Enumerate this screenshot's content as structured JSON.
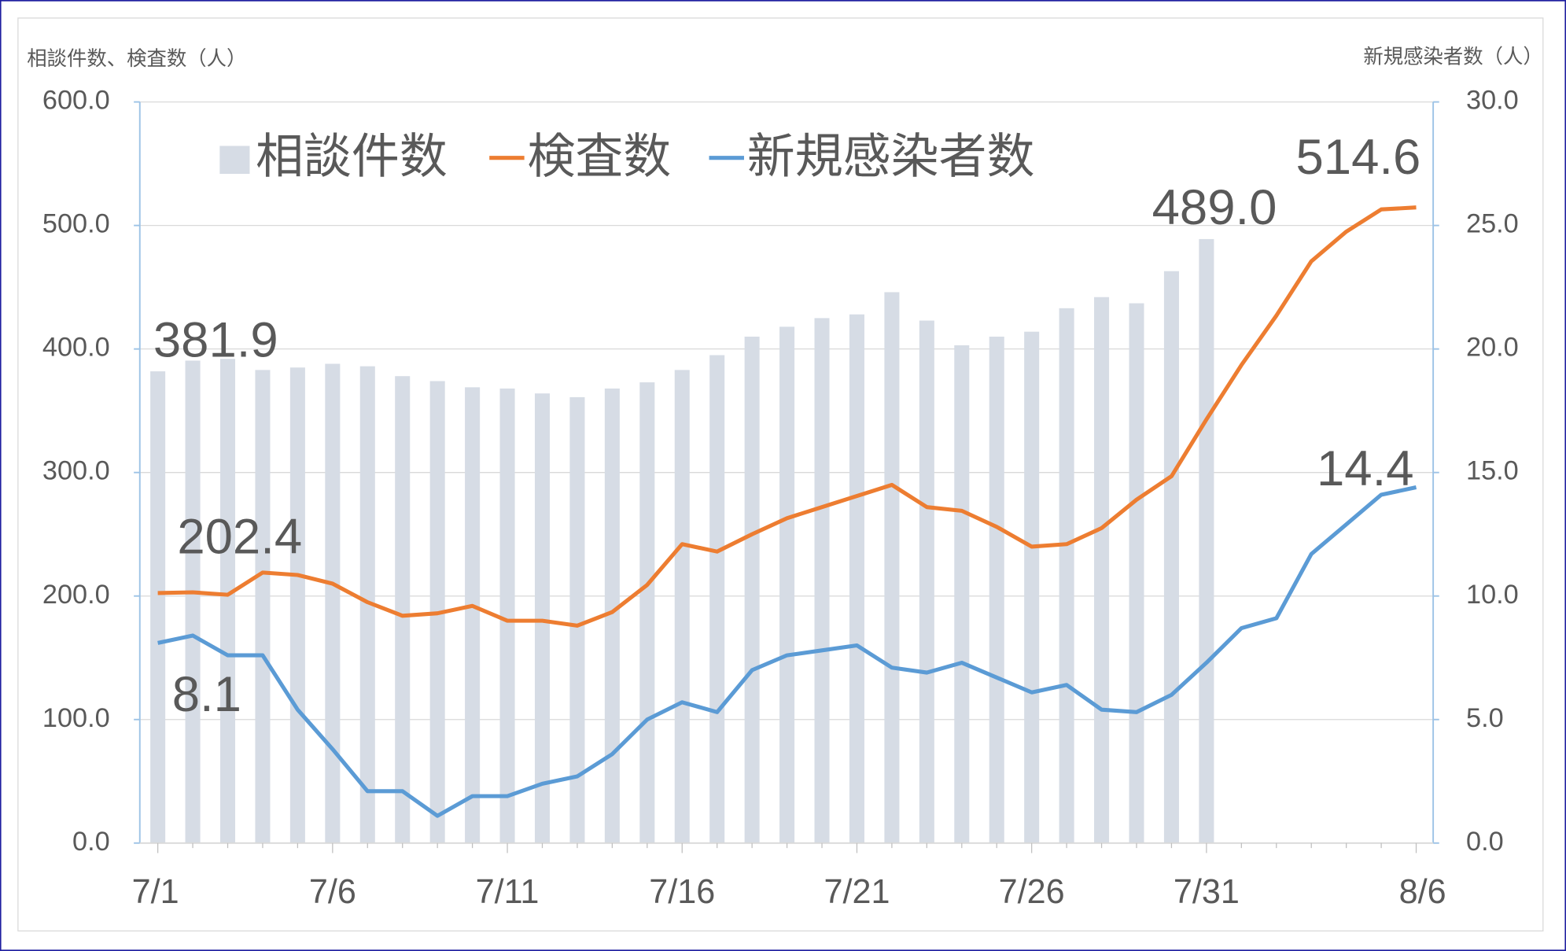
{
  "chart_data": {
    "type": "bar_line",
    "y_label": "相談件数、検査数（人）",
    "y2_label": "新規感染者数（人）",
    "categories": [
      "7/1",
      null,
      null,
      null,
      null,
      "7/6",
      null,
      null,
      null,
      null,
      "7/11",
      null,
      null,
      null,
      null,
      "7/16",
      null,
      null,
      null,
      null,
      "7/21",
      null,
      null,
      null,
      null,
      "7/26",
      null,
      null,
      null,
      null,
      "7/31",
      null,
      null,
      null,
      null,
      null,
      "8/6"
    ],
    "series": [
      {
        "name": "相談件数",
        "type": "bar",
        "color": "#d6dce5",
        "label_color": "#333f50",
        "values": [
          381.9,
          390.6,
          392,
          383,
          385,
          388,
          386,
          378,
          374,
          369,
          368,
          364,
          361,
          368,
          373,
          383,
          395,
          410,
          418,
          425,
          428,
          446,
          423,
          403,
          410,
          414,
          433,
          442,
          437,
          463,
          489.0,
          null,
          null,
          null,
          null,
          null,
          null
        ],
        "value_labels": [
          "381.9",
          null,
          null,
          null,
          null,
          null,
          null,
          null,
          null,
          null,
          null,
          null,
          null,
          null,
          null,
          null,
          null,
          null,
          null,
          null,
          null,
          null,
          null,
          null,
          null,
          null,
          null,
          null,
          null,
          null,
          "489.0",
          null,
          null,
          null,
          null,
          null,
          null
        ]
      },
      {
        "name": "検査数",
        "type": "line",
        "color": "#ed7d31",
        "label_color": "#ff0000",
        "values": [
          202.4,
          203,
          201,
          219,
          217,
          210,
          195,
          184,
          186,
          192,
          180,
          180,
          176,
          187,
          209,
          242,
          236,
          250,
          263,
          272,
          281,
          290,
          272,
          269,
          256,
          240,
          242,
          255,
          278,
          297,
          343,
          387,
          427,
          471,
          495,
          513,
          514.6
        ],
        "value_labels": [
          "202.4",
          null,
          null,
          null,
          null,
          null,
          null,
          null,
          null,
          null,
          null,
          null,
          null,
          null,
          null,
          null,
          null,
          null,
          null,
          null,
          null,
          null,
          null,
          null,
          null,
          null,
          null,
          null,
          null,
          null,
          null,
          null,
          null,
          null,
          null,
          null,
          "514.6"
        ]
      },
      {
        "name": "新規感染者数",
        "type": "line",
        "axis": "y2",
        "color": "#5b9bd5",
        "label_color": "#2f5597",
        "values": [
          8.1,
          8.4,
          7.6,
          7.6,
          5.4,
          3.8,
          2.1,
          2.1,
          1.1,
          1.9,
          1.9,
          2.4,
          2.7,
          3.6,
          5.0,
          5.7,
          5.3,
          7.0,
          7.6,
          7.8,
          8.0,
          7.1,
          6.9,
          7.3,
          6.7,
          6.1,
          6.4,
          5.4,
          5.3,
          6.0,
          7.3,
          8.7,
          9.1,
          11.7,
          12.9,
          14.1,
          14.4
        ],
        "value_labels": [
          "8.1",
          null,
          null,
          null,
          null,
          null,
          null,
          null,
          null,
          null,
          null,
          null,
          null,
          null,
          null,
          null,
          null,
          null,
          null,
          null,
          null,
          null,
          null,
          null,
          null,
          null,
          null,
          null,
          null,
          null,
          null,
          null,
          null,
          null,
          null,
          null,
          "14.4"
        ]
      }
    ],
    "ylim": [
      0,
      600
    ],
    "yticks": [
      {
        "value": 0,
        "label": "0.0"
      },
      {
        "value": 100,
        "label": "100.0"
      },
      {
        "value": 200,
        "label": "200.0"
      },
      {
        "value": 300,
        "label": "300.0"
      },
      {
        "value": 400,
        "label": "400.0"
      },
      {
        "value": 500,
        "label": "500.0"
      },
      {
        "value": 600,
        "label": "600.0"
      }
    ],
    "y2lim": [
      0,
      30
    ],
    "y2ticks": [
      {
        "value": 0,
        "label": "0.0"
      },
      {
        "value": 5,
        "label": "5.0"
      },
      {
        "value": 10,
        "label": "10.0"
      },
      {
        "value": 15,
        "label": "15.0"
      },
      {
        "value": 20,
        "label": "20.0"
      },
      {
        "value": 25,
        "label": "25.0"
      },
      {
        "value": 30,
        "label": "30.0"
      }
    ],
    "grid": true,
    "legend": "top"
  }
}
